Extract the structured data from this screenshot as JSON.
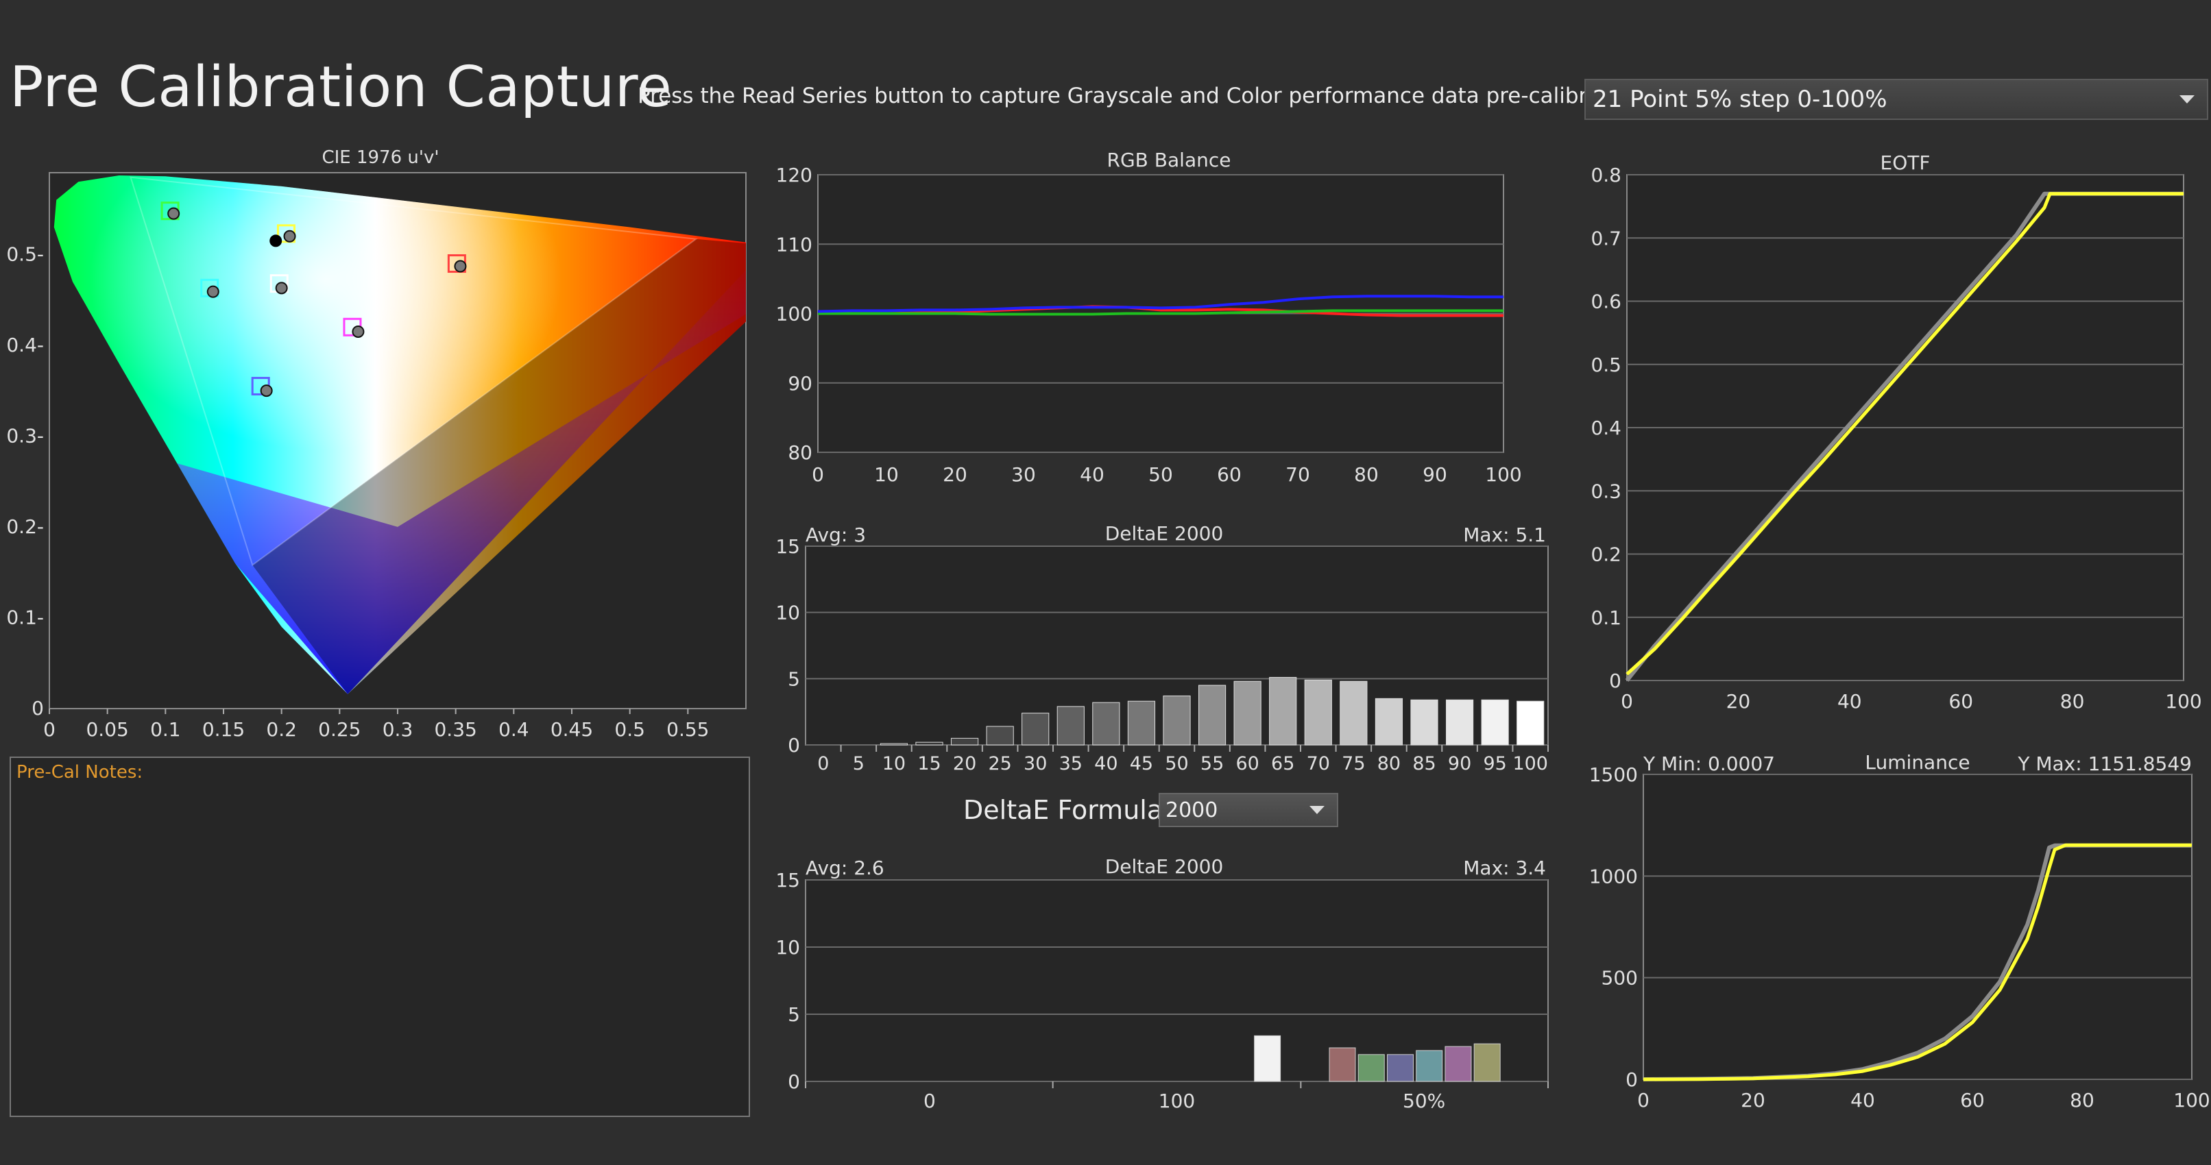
{
  "header": {
    "title": "Pre Calibration Capture",
    "instruction": "Press the Read Series button to capture Grayscale and Color performance data pre-calibration.",
    "series_select": "21 Point 5% step 0-100%"
  },
  "notes": {
    "label": "Pre-Cal Notes:",
    "value": ""
  },
  "deltae_formula": {
    "label": "DeltaE Formula",
    "value": "2000"
  },
  "colors": {
    "grid": "#888888",
    "plot_bg": "#262626",
    "target": "#ffff33",
    "measured": "#8c8c8c",
    "red": "#ff2020",
    "green": "#1fbf1f",
    "blue": "#2020ff",
    "bar": "#e8e8e8"
  },
  "chart_data": [
    {
      "id": "cie",
      "type": "scatter",
      "title": "CIE 1976 u'v'",
      "xlim": [
        0,
        0.6
      ],
      "ylim": [
        0,
        0.59
      ],
      "x_ticks": [
        "0",
        "0.05",
        "0.1",
        "0.15",
        "0.2",
        "0.25",
        "0.3",
        "0.35",
        "0.4",
        "0.45",
        "0.5",
        "0.55"
      ],
      "y_ticks": [
        "0",
        "0.1-",
        "0.2-",
        "0.3-",
        "0.4-",
        "0.5-"
      ],
      "gamut_triangle": [
        [
          0.07,
          0.585
        ],
        [
          0.557,
          0.517
        ],
        [
          0.175,
          0.158
        ]
      ],
      "targets": [
        {
          "name": "R",
          "u": 0.351,
          "v": 0.49,
          "color": "#ff4040"
        },
        {
          "name": "G",
          "u": 0.104,
          "v": 0.548,
          "color": "#40ff40"
        },
        {
          "name": "B",
          "u": 0.182,
          "v": 0.355,
          "color": "#6060ff"
        },
        {
          "name": "C",
          "u": 0.138,
          "v": 0.463,
          "color": "#40ffff"
        },
        {
          "name": "M",
          "u": 0.261,
          "v": 0.42,
          "color": "#ff40ff"
        },
        {
          "name": "Y",
          "u": 0.204,
          "v": 0.523,
          "color": "#ffff40"
        },
        {
          "name": "W",
          "u": 0.198,
          "v": 0.468,
          "color": "#ffffff"
        }
      ],
      "measured": [
        {
          "u": 0.354,
          "v": 0.487
        },
        {
          "u": 0.107,
          "v": 0.545
        },
        {
          "u": 0.187,
          "v": 0.35
        },
        {
          "u": 0.141,
          "v": 0.459
        },
        {
          "u": 0.266,
          "v": 0.415
        },
        {
          "u": 0.207,
          "v": 0.52
        },
        {
          "u": 0.2,
          "v": 0.463
        }
      ],
      "white_point": {
        "u": 0.195,
        "v": 0.515
      }
    },
    {
      "id": "rgb",
      "type": "line",
      "title": "RGB Balance",
      "x_ticks": [
        "0",
        "10",
        "20",
        "30",
        "40",
        "50",
        "60",
        "70",
        "80",
        "90",
        "100"
      ],
      "y_ticks": [
        "80",
        "90",
        "100",
        "110",
        "120"
      ],
      "xlim": [
        0,
        100
      ],
      "ylim": [
        80,
        120
      ],
      "x": [
        0,
        5,
        10,
        15,
        20,
        25,
        30,
        35,
        40,
        45,
        50,
        55,
        60,
        65,
        70,
        75,
        80,
        85,
        90,
        95,
        100
      ],
      "series": [
        {
          "name": "Red",
          "color": "#ff2020",
          "values": [
            100,
            100,
            100,
            100.1,
            100.2,
            100.4,
            100.6,
            100.8,
            101,
            100.9,
            100.5,
            100.5,
            100.6,
            100.5,
            100.2,
            100,
            99.8,
            99.7,
            99.7,
            99.7,
            99.7
          ]
        },
        {
          "name": "Green",
          "color": "#1fbf1f",
          "values": [
            100,
            100,
            100,
            100,
            100,
            99.9,
            99.9,
            99.9,
            99.9,
            100,
            100,
            100,
            100.1,
            100.2,
            100.3,
            100.4,
            100.4,
            100.4,
            100.4,
            100.4,
            100.4
          ]
        },
        {
          "name": "Blue",
          "color": "#2020ff",
          "values": [
            100.3,
            100.4,
            100.4,
            100.5,
            100.5,
            100.6,
            100.8,
            100.9,
            100.9,
            100.9,
            100.8,
            100.9,
            101.3,
            101.6,
            102.1,
            102.4,
            102.5,
            102.5,
            102.5,
            102.4,
            102.4
          ]
        }
      ]
    },
    {
      "id": "deltae_gray",
      "type": "bar",
      "title": "DeltaE 2000",
      "avg_label": "Avg: 3",
      "max_label": "Max: 5.1",
      "ylim": [
        0,
        15
      ],
      "y_ticks": [
        "0",
        "5",
        "10",
        "15"
      ],
      "categories": [
        "0",
        "5",
        "10",
        "15",
        "20",
        "25",
        "30",
        "35",
        "40",
        "45",
        "50",
        "55",
        "60",
        "65",
        "70",
        "75",
        "80",
        "85",
        "90",
        "95",
        "100"
      ],
      "values": [
        0,
        0,
        0.1,
        0.2,
        0.5,
        1.4,
        2.4,
        2.9,
        3.2,
        3.3,
        3.7,
        4.5,
        4.8,
        5.1,
        4.9,
        4.8,
        3.5,
        3.4,
        3.4,
        3.4,
        3.3
      ],
      "bar_colors": [
        "#1a1a1a",
        "#222",
        "#2c2c2c",
        "#363636",
        "#424242",
        "#4c4c4c",
        "#565656",
        "#616161",
        "#6b6b6b",
        "#777",
        "#838383",
        "#8f8f8f",
        "#9c9c9c",
        "#a8a8a8",
        "#b5b5b5",
        "#c2c2c2",
        "#cfcfcf",
        "#dadada",
        "#e6e6e6",
        "#f2f2f2",
        "#ffffff"
      ]
    },
    {
      "id": "deltae_color",
      "type": "bar",
      "title": "DeltaE 2000",
      "avg_label": "Avg: 2.6",
      "max_label": "Max: 3.4",
      "ylim": [
        0,
        15
      ],
      "y_ticks": [
        "0",
        "5",
        "10",
        "15"
      ],
      "x_ticks": [
        "0",
        "100",
        "50%"
      ],
      "bars": [
        {
          "value": 3.4,
          "color": "#f2f2f2",
          "pos": 0.622
        },
        {
          "value": 2.5,
          "color": "#9a6a6a",
          "pos": 0.723
        },
        {
          "value": 2.0,
          "color": "#6a9a6a",
          "pos": 0.762
        },
        {
          "value": 2.0,
          "color": "#6a6a9a",
          "pos": 0.801
        },
        {
          "value": 2.3,
          "color": "#6a9aa0",
          "pos": 0.84
        },
        {
          "value": 2.6,
          "color": "#9a6a9a",
          "pos": 0.879
        },
        {
          "value": 2.8,
          "color": "#9a9a6a",
          "pos": 0.918
        }
      ]
    },
    {
      "id": "eotf",
      "type": "line",
      "title": "EOTF",
      "xlim": [
        0,
        100
      ],
      "ylim": [
        0,
        0.8
      ],
      "x_ticks": [
        "0",
        "20",
        "40",
        "60",
        "80",
        "100"
      ],
      "y_ticks": [
        "0",
        "0.1",
        "0.2",
        "0.3",
        "0.4",
        "0.5",
        "0.6",
        "0.7",
        "0.8"
      ],
      "x": [
        0,
        5,
        10,
        15,
        20,
        25,
        30,
        35,
        40,
        45,
        50,
        55,
        60,
        65,
        70,
        75,
        76,
        80,
        85,
        90,
        95,
        100
      ],
      "series": [
        {
          "name": "Target",
          "color": "#8c8c8c",
          "values": [
            0,
            0.055,
            0.105,
            0.155,
            0.205,
            0.255,
            0.305,
            0.355,
            0.405,
            0.455,
            0.505,
            0.555,
            0.605,
            0.655,
            0.705,
            0.77,
            0.77,
            0.77,
            0.77,
            0.77,
            0.77,
            0.77
          ]
        },
        {
          "name": "Measured",
          "color": "#ffff33",
          "values": [
            0.01,
            0.05,
            0.098,
            0.148,
            0.197,
            0.247,
            0.297,
            0.345,
            0.395,
            0.445,
            0.495,
            0.545,
            0.595,
            0.645,
            0.695,
            0.748,
            0.77,
            0.77,
            0.77,
            0.77,
            0.77,
            0.77
          ]
        }
      ]
    },
    {
      "id": "luminance",
      "type": "line",
      "title": "Luminance",
      "min_label": "Y Min: 0.0007",
      "max_label": "Y Max: 1151.8549",
      "xlim": [
        0,
        100
      ],
      "ylim": [
        0,
        1500
      ],
      "x_ticks": [
        "0",
        "20",
        "40",
        "60",
        "80",
        "100"
      ],
      "y_ticks": [
        "0",
        "500",
        "1000",
        "1500"
      ],
      "x": [
        0,
        10,
        20,
        30,
        35,
        40,
        45,
        50,
        55,
        60,
        65,
        70,
        72,
        74,
        75,
        77,
        80,
        90,
        100
      ],
      "series": [
        {
          "name": "Target",
          "color": "#8c8c8c",
          "values": [
            0,
            2,
            6,
            18,
            30,
            50,
            85,
            130,
            200,
            310,
            480,
            760,
            930,
            1140,
            1150,
            1150,
            1150,
            1150,
            1150
          ]
        },
        {
          "name": "Measured",
          "color": "#ffff33",
          "values": [
            0,
            1,
            4,
            14,
            24,
            40,
            70,
            110,
            175,
            280,
            440,
            690,
            850,
            1040,
            1130,
            1152,
            1152,
            1152,
            1152
          ]
        }
      ]
    }
  ]
}
